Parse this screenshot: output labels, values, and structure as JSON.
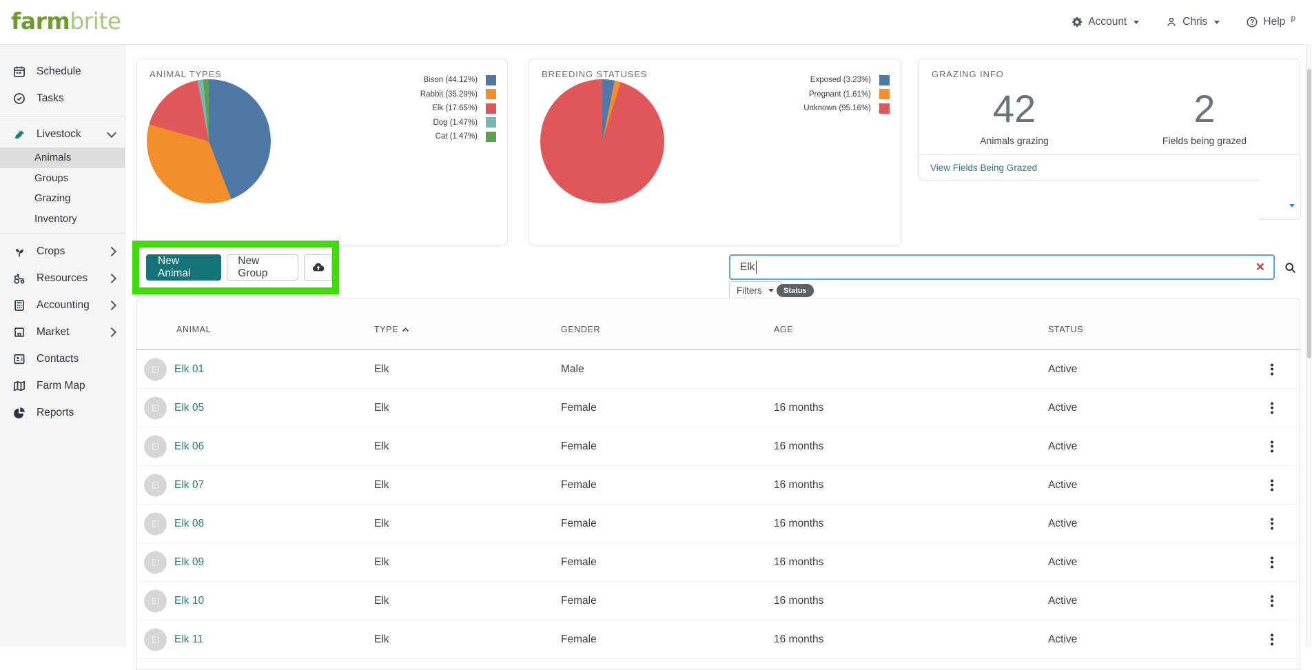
{
  "header": {
    "logo_part1": "farm",
    "logo_part2": "brite",
    "account_label": "Account",
    "user_label": "Chris",
    "help_label": "Help",
    "help_superscript": "p"
  },
  "sidebar": {
    "items": [
      {
        "label": "Schedule"
      },
      {
        "label": "Tasks"
      },
      {
        "label": "Livestock"
      },
      {
        "label": "Crops"
      },
      {
        "label": "Resources"
      },
      {
        "label": "Accounting"
      },
      {
        "label": "Market"
      },
      {
        "label": "Contacts"
      },
      {
        "label": "Farm Map"
      },
      {
        "label": "Reports"
      }
    ],
    "livestock_submenu": [
      {
        "label": "Animals",
        "selected": true
      },
      {
        "label": "Groups"
      },
      {
        "label": "Grazing"
      },
      {
        "label": "Inventory"
      }
    ]
  },
  "cards": {
    "animal_types_title": "ANIMAL TYPES",
    "breeding_statuses_title": "BREEDING STATUSES",
    "grazing": {
      "title": "GRAZING INFO",
      "stat1_value": "42",
      "stat1_label": "Animals grazing",
      "stat2_value": "2",
      "stat2_label": "Fields being grazed",
      "link_label": "View Fields Being Grazed"
    }
  },
  "chart_data": [
    {
      "type": "pie",
      "title": "ANIMAL TYPES",
      "labels": [
        "Bison (44.12%)",
        "Rabbit (35.29%)",
        "Elk (17.65%)",
        "Dog (1.47%)",
        "Cat (1.47%)"
      ],
      "values": [
        44.12,
        35.29,
        17.65,
        1.47,
        1.47
      ],
      "colors": [
        "#4e79a7",
        "#f28e2b",
        "#e15759",
        "#76b7b2",
        "#59a14f"
      ],
      "legend_position": "right",
      "start_angle_deg": 0,
      "direction": "clockwise"
    },
    {
      "type": "pie",
      "title": "BREEDING STATUSES",
      "labels": [
        "Exposed (3.23%)",
        "Pregnant (1.61%)",
        "Unknown (95.16%)"
      ],
      "values": [
        3.23,
        1.61,
        95.16
      ],
      "colors": [
        "#4e79a7",
        "#f28e2b",
        "#e15759"
      ],
      "legend_position": "right",
      "start_angle_deg": 0,
      "direction": "clockwise"
    }
  ],
  "actions": {
    "new_animal_label": "New Animal",
    "new_group_label": "New Group"
  },
  "search": {
    "value": "Elk",
    "filters_label": "Filters",
    "status_badge": "Status"
  },
  "table": {
    "columns": [
      "ANIMAL",
      "TYPE",
      "GENDER",
      "AGE",
      "STATUS"
    ],
    "sorted_by": "TYPE",
    "sort_direction": "asc",
    "rows": [
      {
        "avatar": "El",
        "name": "Elk 01",
        "type": "Elk",
        "gender": "Male",
        "age": "",
        "status": "Active"
      },
      {
        "avatar": "El",
        "name": "Elk 05",
        "type": "Elk",
        "gender": "Female",
        "age": "16 months",
        "status": "Active"
      },
      {
        "avatar": "El",
        "name": "Elk 06",
        "type": "Elk",
        "gender": "Female",
        "age": "16 months",
        "status": "Active"
      },
      {
        "avatar": "El",
        "name": "Elk 07",
        "type": "Elk",
        "gender": "Female",
        "age": "16 months",
        "status": "Active"
      },
      {
        "avatar": "El",
        "name": "Elk 08",
        "type": "Elk",
        "gender": "Female",
        "age": "16 months",
        "status": "Active"
      },
      {
        "avatar": "El",
        "name": "Elk 09",
        "type": "Elk",
        "gender": "Female",
        "age": "16 months",
        "status": "Active"
      },
      {
        "avatar": "El",
        "name": "Elk 10",
        "type": "Elk",
        "gender": "Female",
        "age": "16 months",
        "status": "Active"
      },
      {
        "avatar": "El",
        "name": "Elk 11",
        "type": "Elk",
        "gender": "Female",
        "age": "16 months",
        "status": "Active"
      }
    ]
  },
  "colors": {
    "brand_dark_green": "#6e9b2d",
    "brand_light_green": "#a7c77d",
    "accent_teal": "#15737a",
    "link_teal": "#2b7b80",
    "highlight_green": "#3fdd08",
    "focus_blue": "#57a4e8",
    "clear_red": "#c9413e"
  }
}
